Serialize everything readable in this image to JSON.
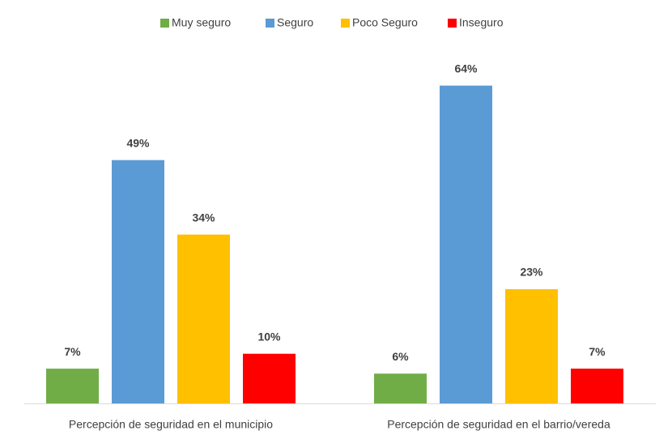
{
  "chart_data": {
    "type": "bar",
    "categories": [
      "Percepción de seguridad en el municipio",
      "Percepción de seguridad en el barrio/vereda"
    ],
    "series": [
      {
        "name": "Muy seguro",
        "color": "#70ad47",
        "values": [
          7,
          6
        ],
        "value_labels": [
          "7%",
          "6%"
        ]
      },
      {
        "name": "Seguro",
        "color": "#5b9bd5",
        "values": [
          49,
          64
        ],
        "value_labels": [
          "49%",
          "64%"
        ]
      },
      {
        "name": "Poco Seguro",
        "color": "#ffc000",
        "values": [
          34,
          23
        ],
        "value_labels": [
          "34%",
          "23%"
        ]
      },
      {
        "name": "Inseguro",
        "color": "#ff0000",
        "values": [
          10,
          7
        ],
        "value_labels": [
          "10%",
          "7%"
        ]
      }
    ],
    "legend": "top"
  }
}
